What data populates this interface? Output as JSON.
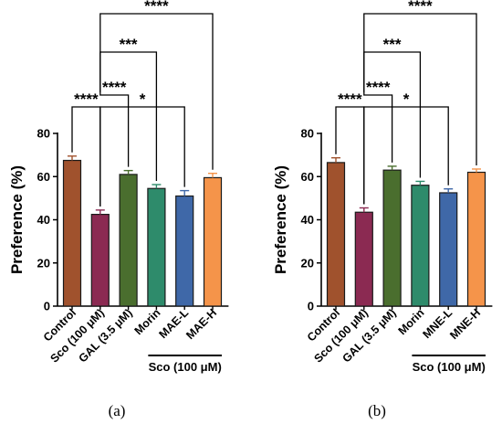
{
  "chart_data": [
    {
      "type": "bar",
      "panel_label": "(a)",
      "ylabel": "Preference (%)",
      "ylim": [
        0,
        80
      ],
      "yticks": [
        0,
        20,
        40,
        60,
        80
      ],
      "categories": [
        "Control",
        "Sco (100 μM)",
        "GAL (3.5 μM)",
        "Morin",
        "MAE-L",
        "MAE-H"
      ],
      "values": [
        67.5,
        42.5,
        61,
        54.5,
        51,
        59.5
      ],
      "errors": [
        2,
        2,
        1.8,
        1.8,
        2.5,
        2
      ],
      "colors": [
        "#a0522d",
        "#8b2a52",
        "#4a6e2e",
        "#2e8b6b",
        "#3f68a8",
        "#f5944a"
      ],
      "group_label": "Sco (100 μM)",
      "group_range": [
        3,
        5
      ],
      "significance": [
        {
          "from": 0,
          "to": 1,
          "text": "****",
          "level": 0
        },
        {
          "from": 1,
          "to": 4,
          "text": "*",
          "level": 0
        },
        {
          "from": 1,
          "to": 2,
          "text": "****",
          "level": 1
        },
        {
          "from": 1,
          "to": 3,
          "text": "***",
          "level": 2
        },
        {
          "from": 1,
          "to": 5,
          "text": "****",
          "level": 3
        }
      ]
    },
    {
      "type": "bar",
      "panel_label": "(b)",
      "ylabel": "Preference (%)",
      "ylim": [
        0,
        80
      ],
      "yticks": [
        0,
        20,
        40,
        60,
        80
      ],
      "categories": [
        "Control",
        "Sco (100 μM)",
        "GAL (3.5 μM)",
        "Morin",
        "MNE-L",
        "MNE-H"
      ],
      "values": [
        66.5,
        43.5,
        63,
        56,
        52.5,
        62
      ],
      "errors": [
        2.2,
        2,
        1.8,
        1.8,
        1.8,
        1.5
      ],
      "colors": [
        "#a0522d",
        "#8b2a52",
        "#4a6e2e",
        "#2e8b6b",
        "#3f68a8",
        "#f5944a"
      ],
      "group_label": "Sco (100 μM)",
      "group_range": [
        3,
        5
      ],
      "significance": [
        {
          "from": 0,
          "to": 1,
          "text": "****",
          "level": 0
        },
        {
          "from": 1,
          "to": 4,
          "text": "*",
          "level": 0
        },
        {
          "from": 1,
          "to": 2,
          "text": "****",
          "level": 1
        },
        {
          "from": 1,
          "to": 3,
          "text": "***",
          "level": 2
        },
        {
          "from": 1,
          "to": 5,
          "text": "****",
          "level": 3
        }
      ]
    }
  ]
}
